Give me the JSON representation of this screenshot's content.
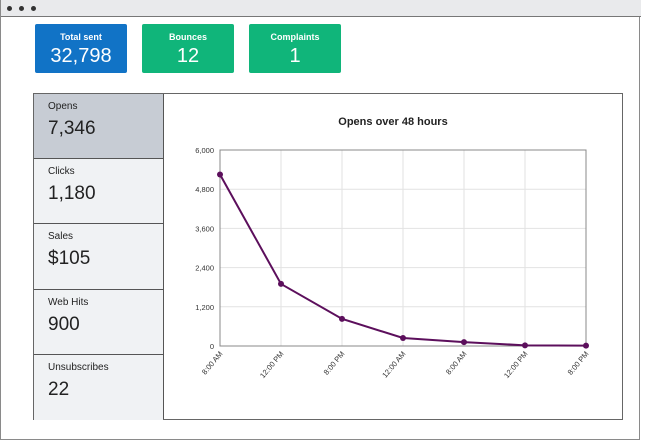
{
  "window": {
    "controls": [
      "dot",
      "dot",
      "dot"
    ]
  },
  "summary": [
    {
      "label": "Total sent",
      "value": "32,798",
      "color": "#1173c6"
    },
    {
      "label": "Bounces",
      "value": "12",
      "color": "#10b57a"
    },
    {
      "label": "Complaints",
      "value": "1",
      "color": "#10b57a"
    }
  ],
  "sidebar": {
    "items": [
      {
        "label": "Opens",
        "value": "7,346",
        "active": true
      },
      {
        "label": "Clicks",
        "value": "1,180"
      },
      {
        "label": "Sales",
        "value": "$105"
      },
      {
        "label": "Web Hits",
        "value": "900"
      },
      {
        "label": "Unsubscribes",
        "value": "22"
      }
    ]
  },
  "chart_data": {
    "type": "line",
    "title": "Opens over 48 hours",
    "categories": [
      "8:00 AM",
      "12:00 PM",
      "8:00 PM",
      "12:00 AM",
      "8:00 AM",
      "12:00 PM",
      "8:00 PM"
    ],
    "values": [
      5250,
      1900,
      830,
      245,
      120,
      20,
      10
    ],
    "ylim": [
      0,
      6000
    ],
    "yticks": [
      0,
      1200,
      2400,
      3600,
      4800,
      6000
    ],
    "ytick_labels": [
      "0",
      "1,200",
      "2,400",
      "3,600",
      "4,800",
      "6,000"
    ],
    "grid": true,
    "line_color": "#5c0f5c"
  }
}
